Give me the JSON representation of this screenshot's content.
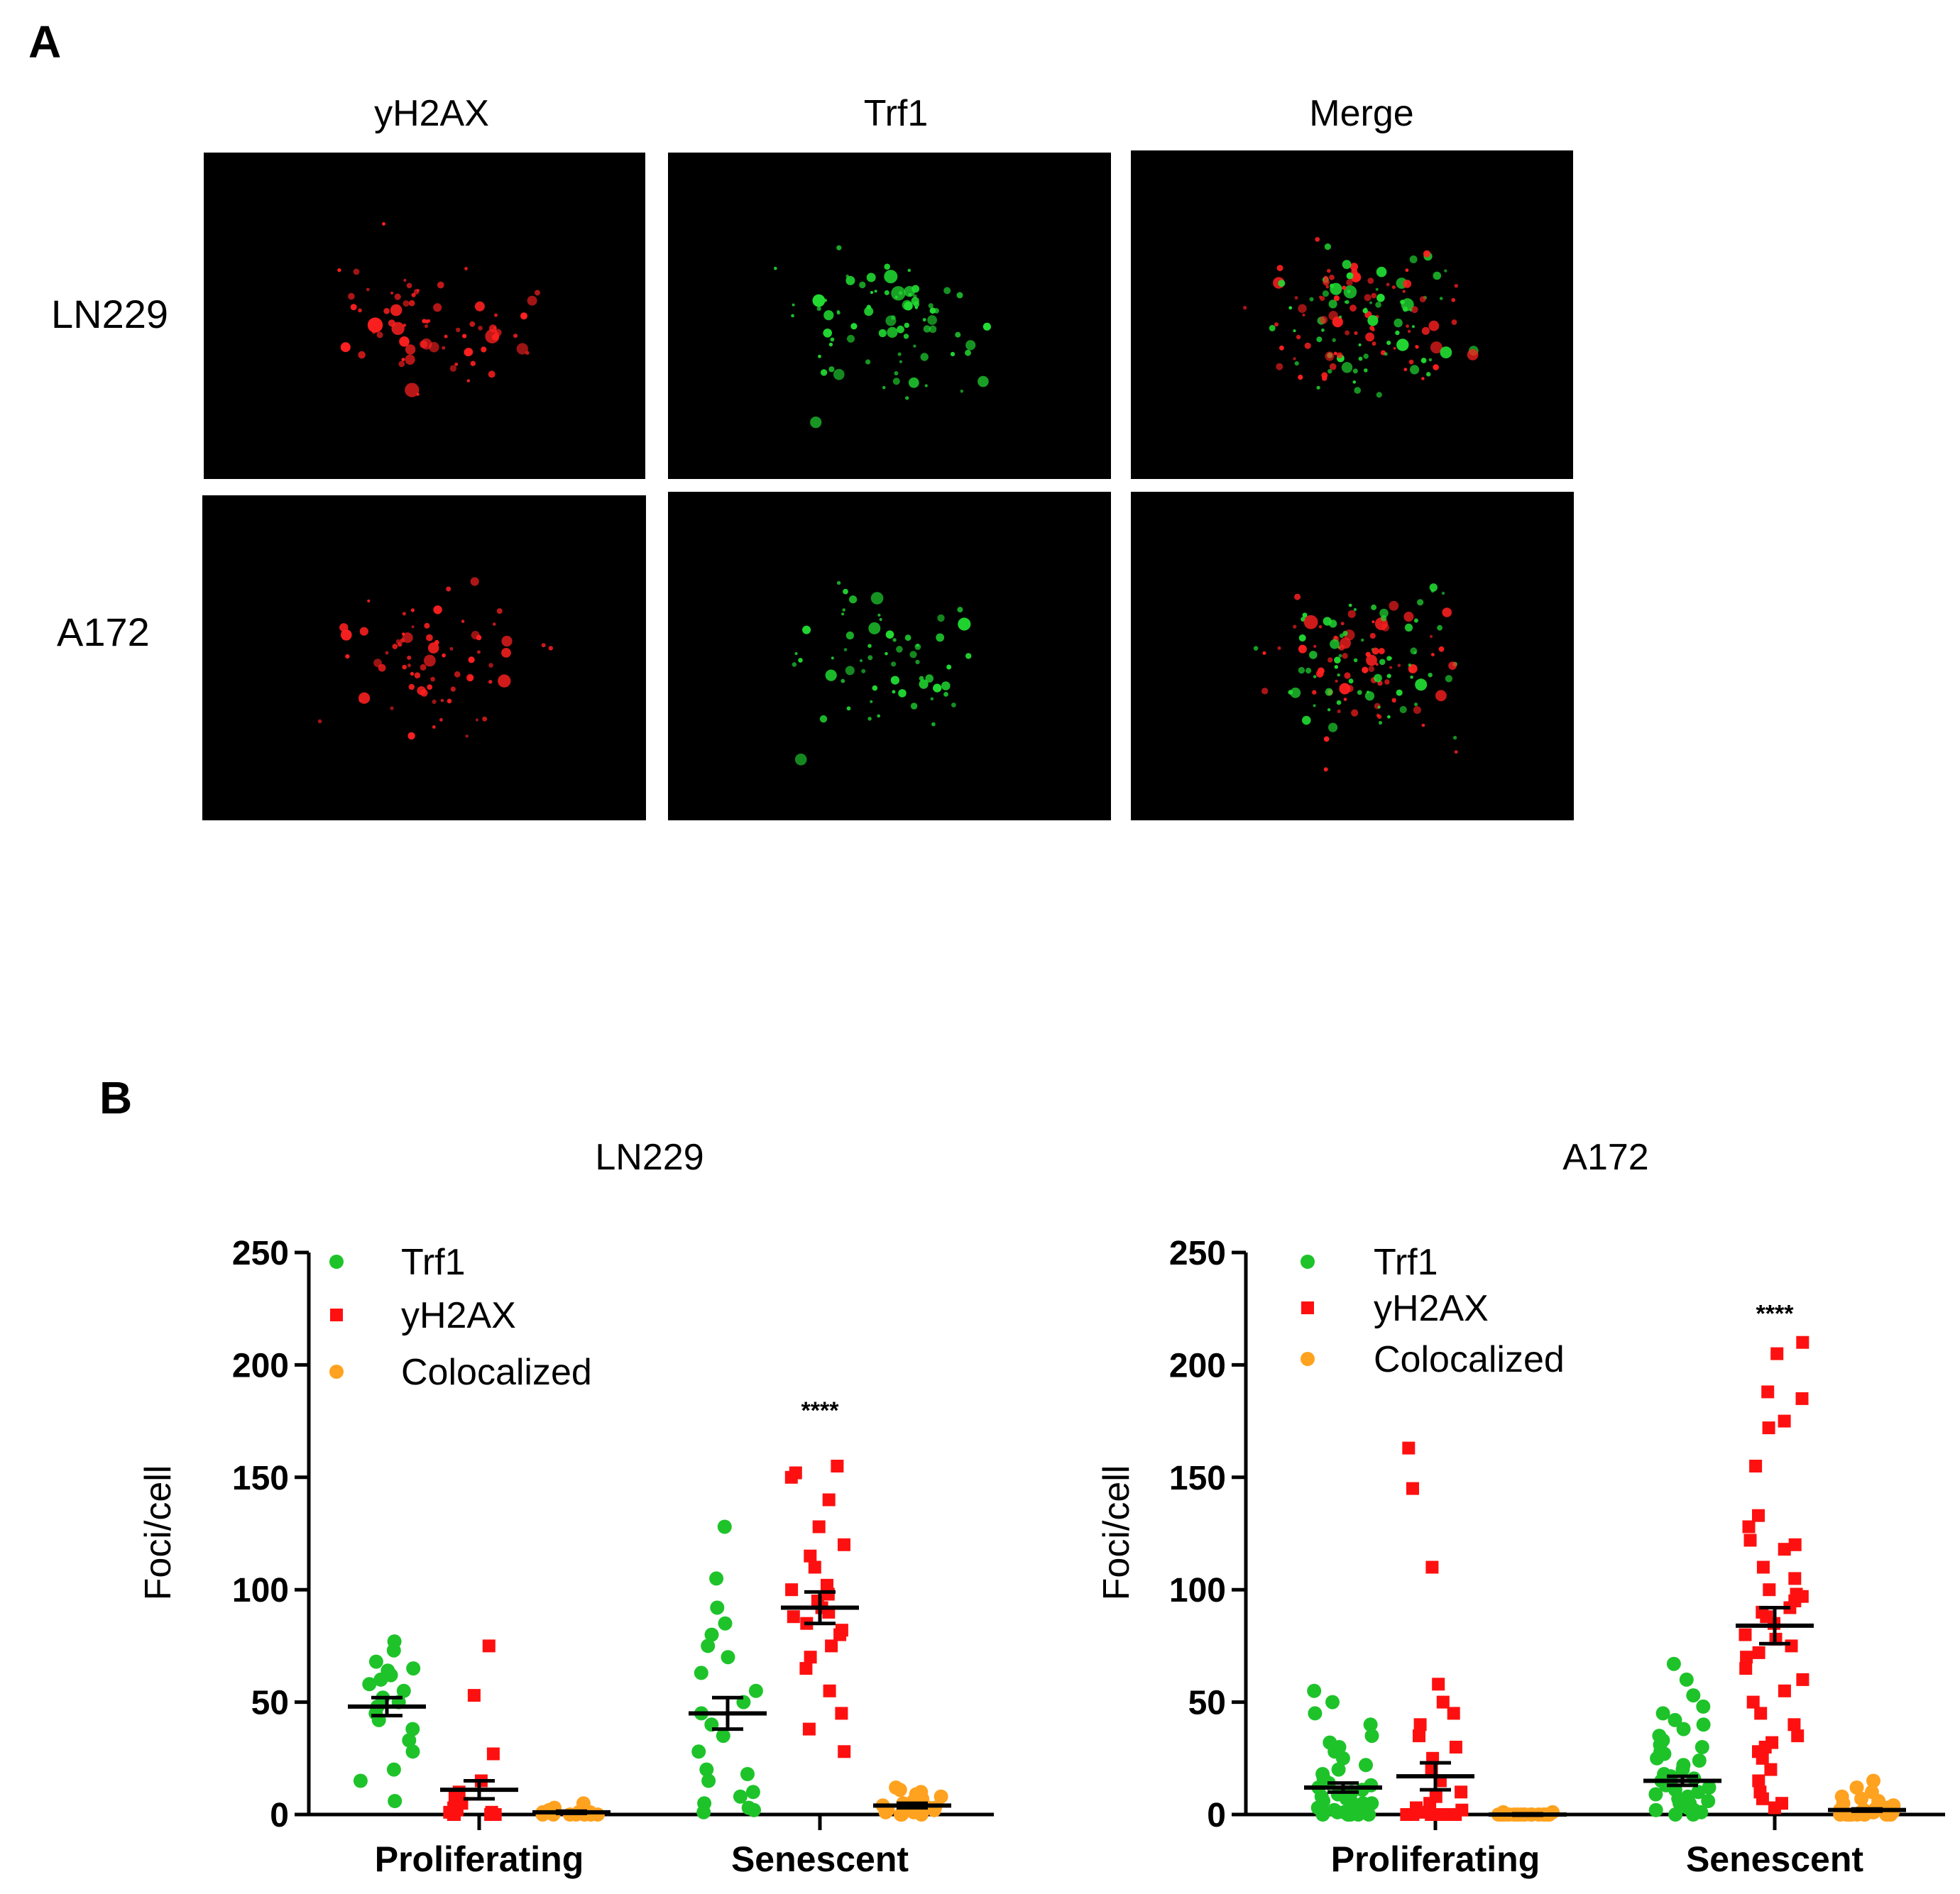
{
  "panel_a": {
    "letter": "A",
    "columns": [
      "yH2AX",
      "Trf1",
      "Merge"
    ],
    "rows": [
      "LN229",
      "A172"
    ],
    "colors": {
      "red": "#ff2020",
      "green": "#22dd33",
      "background": "#000000"
    }
  },
  "panel_b": {
    "letter": "B"
  },
  "chart_data": [
    {
      "type": "scatter",
      "title": "LN229",
      "ylabel": "Foci/cell",
      "xlabel": "",
      "ylim": [
        0,
        250
      ],
      "yticks": [
        0,
        50,
        100,
        150,
        200,
        250
      ],
      "categories": [
        "Proliferating",
        "Senescent"
      ],
      "legend": {
        "position": "top-left"
      },
      "series": [
        {
          "name": "Trf1",
          "marker": "circle",
          "color": "#1ec32a",
          "Proliferating": {
            "mean": 48,
            "sem": 4,
            "values": [
              77,
              73,
              68,
              65,
              64,
              62,
              60,
              58,
              55,
              52,
              50,
              48,
              45,
              42,
              38,
              33,
              28,
              20,
              15,
              6
            ]
          },
          "Senescent": {
            "mean": 45,
            "sem": 7,
            "values": [
              128,
              105,
              92,
              85,
              80,
              75,
              70,
              63,
              55,
              50,
              45,
              40,
              35,
              28,
              20,
              18,
              15,
              10,
              8,
              5,
              3,
              2,
              1
            ]
          }
        },
        {
          "name": "yH2AX",
          "marker": "square",
          "color": "#ff1010",
          "Proliferating": {
            "mean": 11,
            "sem": 4,
            "values": [
              75,
              53,
              27,
              15,
              10,
              8,
              5,
              3,
              2,
              1,
              1,
              0,
              0,
              0,
              0,
              0
            ]
          },
          "Senescent": {
            "mean": 92,
            "sem": 7,
            "values": [
              155,
              152,
              150,
              140,
              128,
              120,
              115,
              110,
              102,
              100,
              98,
              95,
              92,
              90,
              88,
              85,
              82,
              80,
              75,
              70,
              65,
              55,
              45,
              38,
              28
            ]
          }
        },
        {
          "name": "Colocalized",
          "marker": "circle",
          "color": "#ffa21f",
          "Proliferating": {
            "mean": 1,
            "sem": 0.5,
            "values": [
              5,
              3,
              2,
              2,
              1,
              1,
              1,
              0,
              0,
              0,
              0,
              0,
              0,
              0
            ]
          },
          "Senescent": {
            "mean": 4,
            "sem": 1,
            "values": [
              12,
              11,
              10,
              9,
              8,
              7,
              6,
              5,
              5,
              4,
              4,
              3,
              3,
              2,
              2,
              1,
              1,
              0,
              0,
              0
            ]
          }
        }
      ],
      "annotations": [
        {
          "text": "****",
          "category": "Senescent",
          "series": "yH2AX",
          "y": 180
        }
      ]
    },
    {
      "type": "scatter",
      "title": "A172",
      "ylabel": "Foci/cell",
      "xlabel": "",
      "ylim": [
        0,
        250
      ],
      "yticks": [
        0,
        50,
        100,
        150,
        200,
        250
      ],
      "categories": [
        "Proliferating",
        "Senescent"
      ],
      "legend": {
        "position": "top-left"
      },
      "series": [
        {
          "name": "Trf1",
          "marker": "circle",
          "color": "#1ec32a",
          "Proliferating": {
            "mean": 12,
            "sem": 2,
            "values": [
              55,
              50,
              45,
              40,
              35,
              32,
              30,
              28,
              25,
              22,
              20,
              18,
              16,
              15,
              14,
              13,
              12,
              11,
              10,
              9,
              8,
              8,
              7,
              6,
              6,
              5,
              5,
              4,
              4,
              3,
              3,
              2,
              2,
              1,
              1,
              0,
              0,
              0,
              0,
              0
            ]
          },
          "Senescent": {
            "mean": 15,
            "sem": 2,
            "values": [
              67,
              60,
              53,
              48,
              45,
              42,
              40,
              38,
              35,
              33,
              31,
              30,
              28,
              27,
              25,
              24,
              22,
              20,
              18,
              17,
              16,
              15,
              14,
              13,
              12,
              11,
              10,
              9,
              8,
              7,
              6,
              5,
              5,
              4,
              3,
              2,
              2,
              1,
              1,
              0,
              0
            ]
          }
        },
        {
          "name": "yH2AX",
          "marker": "square",
          "color": "#ff1010",
          "Proliferating": {
            "mean": 17,
            "sem": 6,
            "values": [
              163,
              145,
              110,
              58,
              50,
              45,
              40,
              35,
              30,
              25,
              20,
              15,
              10,
              8,
              5,
              3,
              2,
              1,
              0,
              0,
              0,
              0,
              0,
              0,
              0,
              0
            ]
          },
          "Senescent": {
            "mean": 84,
            "sem": 8,
            "values": [
              210,
              205,
              188,
              185,
              175,
              172,
              155,
              133,
              128,
              122,
              120,
              118,
              110,
              105,
              100,
              98,
              97,
              95,
              92,
              90,
              88,
              85,
              80,
              78,
              75,
              72,
              70,
              65,
              60,
              55,
              50,
              45,
              40,
              35,
              32,
              30,
              28,
              25,
              20,
              15,
              10,
              7,
              5,
              3
            ]
          }
        },
        {
          "name": "Colocalized",
          "marker": "circle",
          "color": "#ffa21f",
          "Proliferating": {
            "mean": 0,
            "sem": 0.3,
            "values": [
              1,
              1,
              0,
              0,
              0,
              0,
              0,
              0,
              0,
              0,
              0,
              0,
              0,
              0,
              0,
              0,
              0,
              0,
              0,
              0
            ]
          },
          "Senescent": {
            "mean": 2,
            "sem": 0.5,
            "values": [
              15,
              12,
              10,
              8,
              7,
              6,
              5,
              4,
              4,
              3,
              3,
              2,
              2,
              2,
              1,
              1,
              1,
              1,
              0,
              0,
              0,
              0,
              0,
              0,
              0,
              0,
              0,
              0,
              0,
              0
            ]
          }
        }
      ],
      "annotations": [
        {
          "text": "****",
          "category": "Senescent",
          "series": "yH2AX",
          "y": 223
        }
      ]
    }
  ]
}
